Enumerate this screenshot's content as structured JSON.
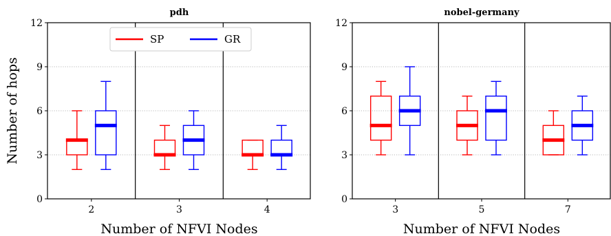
{
  "y_axis_label": "Number of hops",
  "legend": [
    {
      "label": "SP",
      "color": "#ff0000"
    },
    {
      "label": "GR",
      "color": "#0000ff"
    }
  ],
  "chart_data": [
    {
      "type": "boxplot",
      "title": "pdh",
      "xlabel": "Number of NFVI Nodes",
      "ylabel": "Number of hops",
      "ylim": [
        0,
        12
      ],
      "yticks": [
        "0",
        "3",
        "6",
        "9",
        "12"
      ],
      "grid": "horizontal dotted",
      "legend_position": "top-center",
      "categories": [
        "2",
        "3",
        "4"
      ],
      "series": [
        {
          "name": "SP",
          "color": "#ff0000",
          "boxes": [
            {
              "min": 2,
              "q1": 3,
              "median": 4,
              "q3": 4,
              "max": 6
            },
            {
              "min": 2,
              "q1": 3,
              "median": 3,
              "q3": 4,
              "max": 5
            },
            {
              "min": 2,
              "q1": 3,
              "median": 3,
              "q3": 4,
              "max": 4
            }
          ]
        },
        {
          "name": "GR",
          "color": "#0000ff",
          "boxes": [
            {
              "min": 2,
              "q1": 3,
              "median": 5,
              "q3": 6,
              "max": 8
            },
            {
              "min": 2,
              "q1": 3,
              "median": 4,
              "q3": 5,
              "max": 6
            },
            {
              "min": 2,
              "q1": 3,
              "median": 3,
              "q3": 4,
              "max": 5
            }
          ]
        }
      ]
    },
    {
      "type": "boxplot",
      "title": "nobel-germany",
      "xlabel": "Number of NFVI Nodes",
      "ylabel": "",
      "ylim": [
        0,
        12
      ],
      "yticks": [
        "0",
        "3",
        "6",
        "9",
        "12"
      ],
      "grid": "horizontal dotted",
      "categories": [
        "3",
        "5",
        "7"
      ],
      "series": [
        {
          "name": "SP",
          "color": "#ff0000",
          "boxes": [
            {
              "min": 3,
              "q1": 4,
              "median": 5,
              "q3": 7,
              "max": 8
            },
            {
              "min": 3,
              "q1": 4,
              "median": 5,
              "q3": 6,
              "max": 7
            },
            {
              "min": 3,
              "q1": 3,
              "median": 4,
              "q3": 5,
              "max": 6
            }
          ]
        },
        {
          "name": "GR",
          "color": "#0000ff",
          "boxes": [
            {
              "min": 3,
              "q1": 5,
              "median": 6,
              "q3": 7,
              "max": 9
            },
            {
              "min": 3,
              "q1": 4,
              "median": 6,
              "q3": 7,
              "max": 8
            },
            {
              "min": 3,
              "q1": 4,
              "median": 5,
              "q3": 6,
              "max": 7
            }
          ]
        }
      ]
    }
  ]
}
